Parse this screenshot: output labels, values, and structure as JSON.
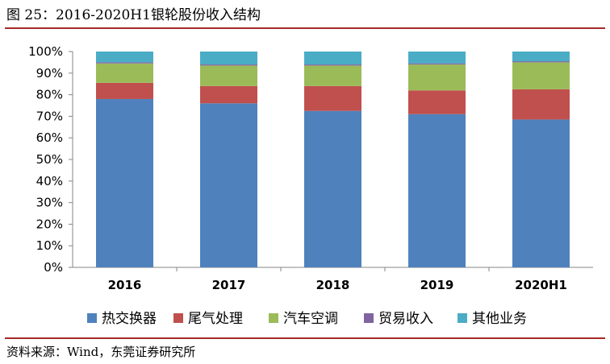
{
  "title": "图 25：2016-2020H1银轮股份收入结构",
  "source": "资料来源：Wind，东莞证券研究所",
  "chart_data": {
    "type": "bar",
    "stacked": true,
    "percent": true,
    "categories": [
      "2016",
      "2017",
      "2018",
      "2019",
      "2020H1"
    ],
    "y_ticks": [
      "0%",
      "10%",
      "20%",
      "30%",
      "40%",
      "50%",
      "60%",
      "70%",
      "80%",
      "90%",
      "100%"
    ],
    "ylim": [
      0,
      100
    ],
    "grid": false,
    "legend_position": "bottom",
    "series": [
      {
        "name": "热交换器",
        "color": "#4f81bd",
        "values": [
          78,
          76,
          72.5,
          71,
          68.5
        ]
      },
      {
        "name": "尾气处理",
        "color": "#c0504d",
        "values": [
          7.5,
          8,
          11.5,
          11,
          14
        ]
      },
      {
        "name": "汽车空调",
        "color": "#9bbb59",
        "values": [
          9,
          9.5,
          9.5,
          12,
          12.5
        ]
      },
      {
        "name": "贸易收入",
        "color": "#8064a2",
        "values": [
          0.5,
          0.5,
          0.5,
          0.5,
          0.5
        ]
      },
      {
        "name": "其他业务",
        "color": "#4bacc6",
        "values": [
          5,
          6,
          6,
          5.5,
          4.5
        ]
      }
    ]
  }
}
